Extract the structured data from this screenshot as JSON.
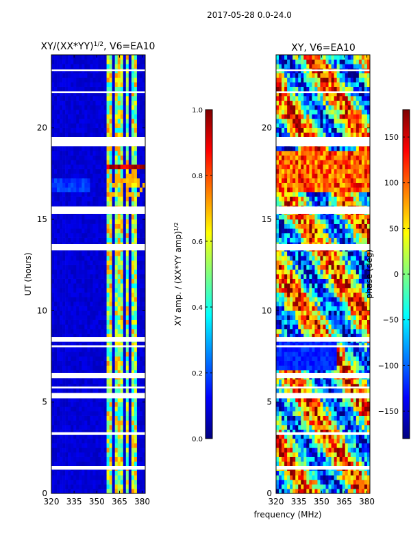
{
  "figure": {
    "suptitle": "2017-05-28 0.0-24.0",
    "shared_xlabel": "frequency (MHz)"
  },
  "colors": {
    "jet": [
      "#00007f",
      "#0000ff",
      "#007fff",
      "#00ffff",
      "#7fff7f",
      "#ffff00",
      "#ff7f00",
      "#ff0000",
      "#7f0000"
    ],
    "background_low": "#00007f",
    "gap": "#ffffff"
  },
  "chart_data": [
    {
      "type": "heatmap",
      "title_main": "XY/(XX*YY)",
      "title_sup": "1/2",
      "title_tail": ", V6=EA10",
      "xlabel": "",
      "ylabel": "UT (hours)",
      "xlim": [
        320,
        382
      ],
      "ylim": [
        0,
        24
      ],
      "xticks": [
        320,
        335,
        350,
        365,
        380
      ],
      "yticks": [
        0,
        5,
        10,
        15,
        20
      ],
      "quantity": "normalized cross-correlation amplitude",
      "colorbar": {
        "label_main": "XY amp. / (XX*YY amp)",
        "label_sup": "1/2",
        "range": [
          0.0,
          1.0
        ],
        "ticks": [
          "0.0",
          "0.2",
          "0.4",
          "0.6",
          "0.8",
          "1.0"
        ]
      },
      "rfi_channels_mhz": [
        357.5,
        360,
        362,
        364.5,
        367,
        369.5,
        373,
        376
      ],
      "strong_rfi_hours": [
        17.0,
        17.5,
        17.9
      ],
      "gaps_hours": [
        [
          1.3,
          1.5
        ],
        [
          3.2,
          3.35
        ],
        [
          5.2,
          5.5
        ],
        [
          5.75,
          5.85
        ],
        [
          6.3,
          6.6
        ],
        [
          8.0,
          8.1
        ],
        [
          8.3,
          8.55
        ],
        [
          13.3,
          13.65
        ],
        [
          15.3,
          15.7
        ],
        [
          19.0,
          19.5
        ],
        [
          21.9,
          22.0
        ],
        [
          23.1,
          23.2
        ]
      ]
    },
    {
      "type": "heatmap",
      "title_main": "XY, V6=EA10",
      "title_sup": "",
      "title_tail": "",
      "xlabel": "",
      "ylabel": "",
      "xlim": [
        320,
        382
      ],
      "ylim": [
        0,
        24
      ],
      "xticks": [
        320,
        335,
        350,
        365,
        380
      ],
      "yticks": [
        0,
        5,
        10,
        15,
        20
      ],
      "quantity": "cross-correlation phase",
      "colorbar": {
        "label_main": "phase (deg)",
        "label_sup": "",
        "range": [
          -180,
          180
        ],
        "ticks": [
          "−150",
          "−100",
          "−50",
          "0",
          "50",
          "100",
          "150"
        ]
      },
      "gaps_hours": [
        [
          1.3,
          1.5
        ],
        [
          3.2,
          3.35
        ],
        [
          5.2,
          5.5
        ],
        [
          5.75,
          5.85
        ],
        [
          6.3,
          6.6
        ],
        [
          8.0,
          8.1
        ],
        [
          8.3,
          8.55
        ],
        [
          13.3,
          13.65
        ],
        [
          15.3,
          15.7
        ],
        [
          19.0,
          19.5
        ],
        [
          21.9,
          22.0
        ],
        [
          23.1,
          23.2
        ]
      ]
    }
  ]
}
